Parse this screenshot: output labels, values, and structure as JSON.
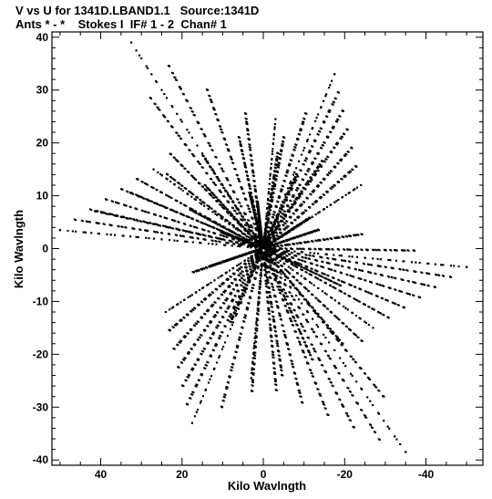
{
  "header": {
    "line1": "V vs U for 1341D.LBAND1.1   Source:1341D",
    "line2": "Ants * - *    Stokes I  IF# 1 - 2  Chan# 1"
  },
  "chart_data": {
    "type": "scatter",
    "title": "V vs U for 1341D.LBAND1.1   Source:1341D",
    "subtitle": "Ants * - *    Stokes I  IF# 1 - 2  Chan# 1",
    "xlabel": "Kilo Wavlngth",
    "ylabel": "Kilo Wavlngth",
    "xlim": [
      52,
      -54
    ],
    "ylim": [
      -41,
      41
    ],
    "x_ticks": [
      {
        "value": 40,
        "label": "40"
      },
      {
        "value": 20,
        "label": "20"
      },
      {
        "value": 0,
        "label": "0"
      },
      {
        "value": -20,
        "label": "-20"
      },
      {
        "value": -40,
        "label": "-40"
      }
    ],
    "y_ticks": [
      {
        "value": 40,
        "label": "40"
      },
      {
        "value": 30,
        "label": "30"
      },
      {
        "value": 20,
        "label": "20"
      },
      {
        "value": 10,
        "label": "10"
      },
      {
        "value": 0,
        "label": "0"
      },
      {
        "value": -10,
        "label": "-10"
      },
      {
        "value": -20,
        "label": "-20"
      },
      {
        "value": -30,
        "label": "-30"
      },
      {
        "value": -40,
        "label": "-40"
      }
    ],
    "arms": [
      {
        "end_u": 32.5,
        "end_v": 39.0
      },
      {
        "end_u": 3.0,
        "end_v": -24.5
      },
      {
        "end_u": -35.0,
        "end_v": -38.5
      },
      {
        "end_u": -3.0,
        "end_v": 24.5
      },
      {
        "end_u": 50.0,
        "end_v": 3.5
      },
      {
        "end_u": 27.0,
        "end_v": 15.0
      },
      {
        "end_u": -50.0,
        "end_v": -3.5
      },
      {
        "end_u": -27.0,
        "end_v": -15.0
      },
      {
        "end_u": 17.5,
        "end_v": -33.0
      },
      {
        "end_u": 24.0,
        "end_v": -12.0
      },
      {
        "end_u": -17.5,
        "end_v": 33.0
      },
      {
        "end_u": -24.0,
        "end_v": 12.0
      }
    ],
    "track_counts": [
      16,
      26
    ],
    "grid": false
  }
}
